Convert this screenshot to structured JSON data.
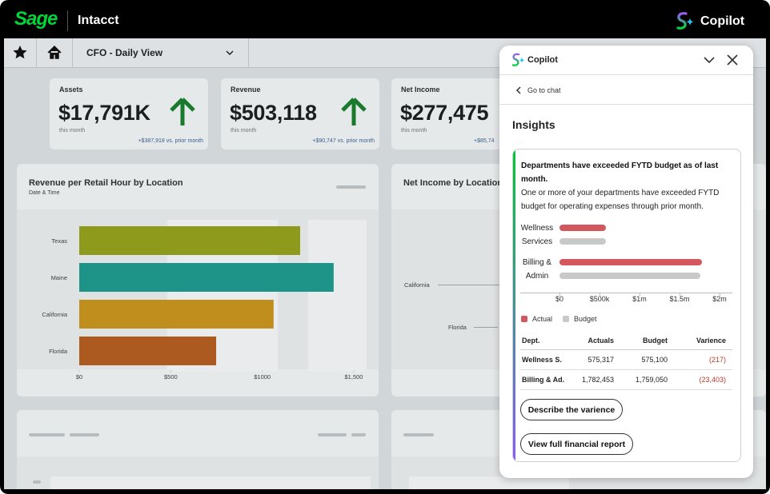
{
  "app_bar": {
    "brand": "Sage",
    "product": "Intacct",
    "assistant": "Copilot"
  },
  "nav": {
    "view": "CFO - Daily View"
  },
  "kpis": [
    {
      "label": "Assets",
      "value": "$17,791K",
      "period": "this month",
      "delta": "+$387,918 vs. prior month"
    },
    {
      "label": "Revenue",
      "value": "$503,118",
      "period": "this month",
      "delta": "+$90,747 vs. prior month"
    },
    {
      "label": "Net Income",
      "value": "$277,475",
      "period": "this month",
      "delta": "+$85,74"
    }
  ],
  "revenue_chart": {
    "type": "bar",
    "orientation": "horizontal",
    "title": "Revenue per Retail Hour by Location",
    "subtitle": "Date & Time",
    "categories": [
      "Texas",
      "Maine",
      "California",
      "Florida"
    ],
    "values": [
      1207,
      1390,
      1062,
      748
    ],
    "colors": [
      "#8e9a1c",
      "#1e9488",
      "#c08e1c",
      "#ad5a20"
    ],
    "xlim": [
      0,
      1500
    ],
    "xticks": [
      {
        "value": 0,
        "label": "$0"
      },
      {
        "value": 500,
        "label": "$500"
      },
      {
        "value": 1000,
        "label": "$1000"
      },
      {
        "value": 1500,
        "label": "$1,500"
      }
    ]
  },
  "net_income_chart": {
    "title": "Net Income by Location",
    "categories": [
      "California",
      "Florida"
    ]
  },
  "copilot": {
    "title": "Copilot",
    "back": "Go to chat",
    "section": "Insights",
    "insight": {
      "headline": "Departments have exceeded FYTD budget as of last month.",
      "body": "One or more of your departments have exceeded FYTD budget for operating expenses through prior month.",
      "chart": {
        "type": "bar",
        "orientation": "horizontal",
        "categories": [
          "Wellness Services",
          "Billing & Admin"
        ],
        "series": [
          {
            "name": "Actual",
            "color": "#d4575d",
            "values": [
              575317,
              1782453
            ]
          },
          {
            "name": "Budget",
            "color": "#c9c9c9",
            "values": [
              575100,
              1759050
            ]
          }
        ],
        "xlim": [
          0,
          2000000
        ],
        "xticks": [
          {
            "value": 0,
            "label": "$0"
          },
          {
            "value": 500000,
            "label": "$500k"
          },
          {
            "value": 1000000,
            "label": "$1m"
          },
          {
            "value": 1500000,
            "label": "$1.5m"
          },
          {
            "value": 2000000,
            "label": "$2m"
          }
        ]
      },
      "table": {
        "header": [
          "Dept.",
          "Actuals",
          "Budget",
          "Varience"
        ],
        "rows": [
          [
            "Wellness S.",
            "575,317",
            "575,100",
            "(217)"
          ],
          [
            "Billing & Ad.",
            "1,782,453",
            "1,759,050",
            "(23,403)"
          ]
        ]
      },
      "actions": [
        "Describe the varience",
        "View full financial report"
      ]
    }
  }
}
